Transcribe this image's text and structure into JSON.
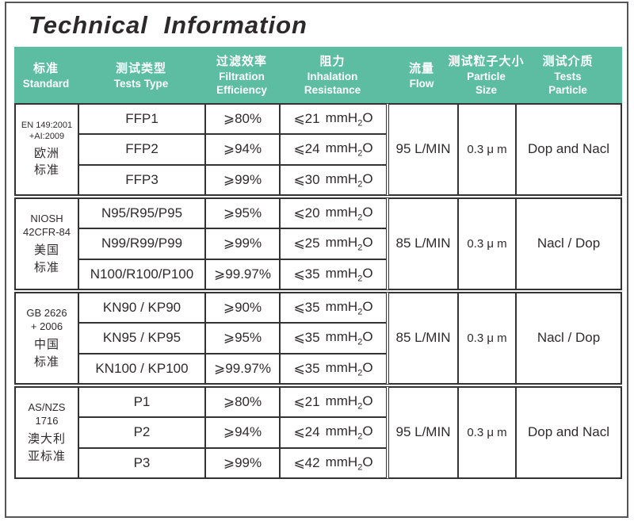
{
  "page": {
    "title": "Technical Information"
  },
  "colors": {
    "header_bg": "#5cbda2",
    "grid_border": "#333333",
    "title_text": "#2d292b"
  },
  "table": {
    "header": [
      {
        "zh": "标准",
        "en": "Standard"
      },
      {
        "zh": "测试类型",
        "en": "Tests Type"
      },
      {
        "zh": "过滤效率",
        "en": "Filtration\nEfficiency"
      },
      {
        "zh": "阻力",
        "en": "Inhalation\nResistance"
      },
      {
        "zh": "流量",
        "en": "Flow"
      },
      {
        "zh": "测试粒子大小",
        "en": "Particle\nSize"
      },
      {
        "zh": "测试介质",
        "en": "Tests\nParticle"
      }
    ],
    "unit": {
      "prefix": "mmH",
      "sub": "2",
      "suffix": "O"
    },
    "groups": [
      {
        "standard_en": "EN 149:2001\n+AI:2009",
        "standard_zh": "欧洲\n标准",
        "rows": [
          {
            "type": "FFP1",
            "efficiency": "⩾80%",
            "resistance": "⩽21"
          },
          {
            "type": "FFP2",
            "efficiency": "⩾94%",
            "resistance": "⩽24"
          },
          {
            "type": "FFP3",
            "efficiency": "⩾99%",
            "resistance": "⩽30"
          }
        ],
        "flow": "95 L/MIN",
        "particle_size": "0.3 μ m",
        "test_particle": "Dop and Nacl"
      },
      {
        "standard_en": "NIOSH\n42CFR-84",
        "standard_zh": "美国\n标准",
        "rows": [
          {
            "type": "N95/R95/P95",
            "efficiency": "⩾95%",
            "resistance": "⩽20"
          },
          {
            "type": "N99/R99/P99",
            "efficiency": "⩾99%",
            "resistance": "⩽25"
          },
          {
            "type": "N100/R100/P100",
            "efficiency": "⩾99.97%",
            "resistance": "⩽35"
          }
        ],
        "flow": "85 L/MIN",
        "particle_size": "0.3 μ m",
        "test_particle": "Nacl / Dop"
      },
      {
        "standard_en": "GB 2626\n+ 2006",
        "standard_zh": "中国\n标准",
        "rows": [
          {
            "type": "KN90 / KP90",
            "efficiency": "⩾90%",
            "resistance": "⩽35"
          },
          {
            "type": "KN95 / KP95",
            "efficiency": "⩾95%",
            "resistance": "⩽35"
          },
          {
            "type": "KN100 / KP100",
            "efficiency": "⩾99.97%",
            "resistance": "⩽35"
          }
        ],
        "flow": "85 L/MIN",
        "particle_size": "0.3 μ m",
        "test_particle": "Nacl / Dop"
      },
      {
        "standard_en": "AS/NZS\n1716",
        "standard_zh": "澳大利\n亚标准",
        "rows": [
          {
            "type": "P1",
            "efficiency": "⩾80%",
            "resistance": "⩽21"
          },
          {
            "type": "P2",
            "efficiency": "⩾94%",
            "resistance": "⩽24"
          },
          {
            "type": "P3",
            "efficiency": "⩾99%",
            "resistance": "⩽42"
          }
        ],
        "flow": "95 L/MIN",
        "particle_size": "0.3 μ m",
        "test_particle": "Dop and Nacl"
      }
    ]
  }
}
